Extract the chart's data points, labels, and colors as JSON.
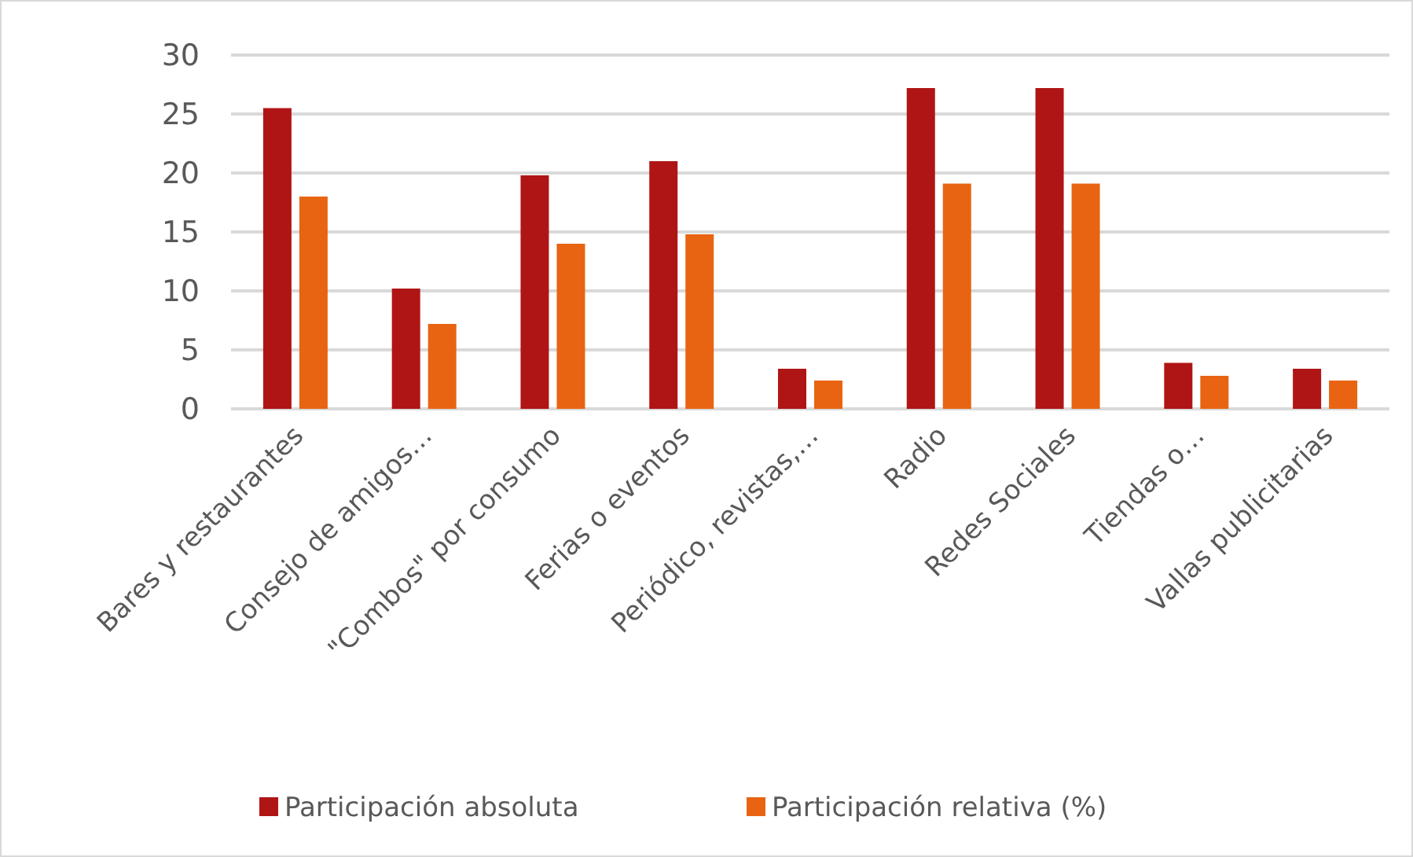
{
  "chart_data": {
    "type": "bar",
    "categories": [
      "Bares y restaurantes",
      "Consejo de amigos…",
      "\"Combos\" por consumo",
      "Ferias o eventos",
      "Periódico, revistas,…",
      "Radio",
      "Redes Sociales",
      "Tiendas o…",
      "Vallas publicitarias"
    ],
    "series": [
      {
        "name": "Participación absoluta",
        "color": "#b01515",
        "values": [
          25.5,
          10.2,
          19.8,
          21,
          3.4,
          27.2,
          27.2,
          3.9,
          3.4
        ]
      },
      {
        "name": "Participación relativa (%)",
        "color": "#e86412",
        "values": [
          18,
          7.2,
          14,
          14.8,
          2.4,
          19.1,
          19.1,
          2.8,
          2.4
        ]
      }
    ],
    "ylim": [
      0,
      30
    ],
    "yticks": [
      0,
      5,
      10,
      15,
      20,
      25,
      30
    ],
    "grid": "y",
    "legend": "bottom"
  }
}
